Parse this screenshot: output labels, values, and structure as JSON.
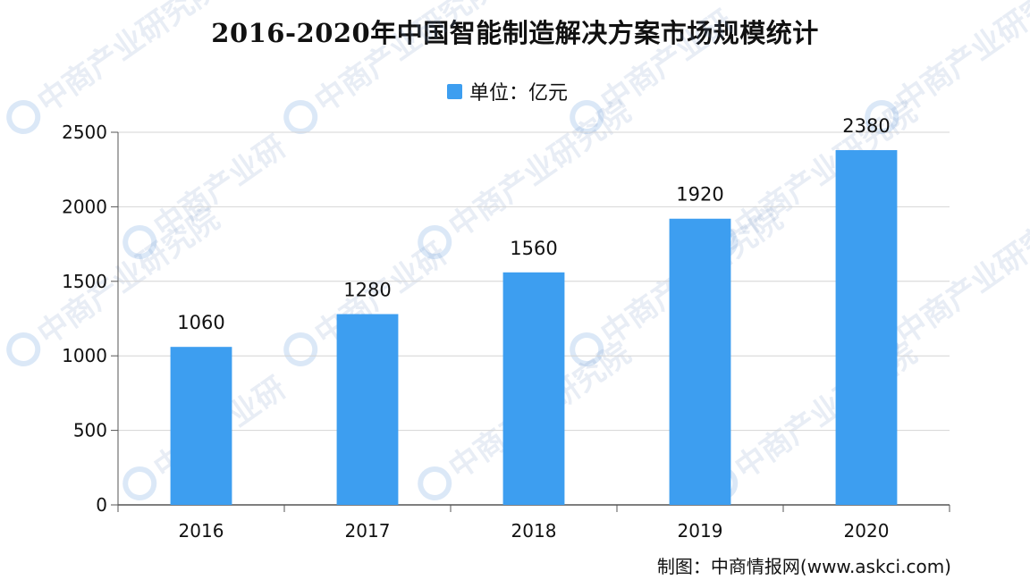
{
  "title": "2016-2020年中国智能制造解决方案市场规模统计",
  "legend": {
    "label": "单位：亿元",
    "color": "#3d9ef0"
  },
  "credit": "制图：中商情报网(www.askci.com)",
  "watermark": {
    "text_main": "中商产业研究院",
    "text_alt": "中商产业研",
    "logo_icon": "askci-logo-icon"
  },
  "chart_data": {
    "type": "bar",
    "title": "2016-2020年中国智能制造解决方案市场规模统计",
    "categories": [
      "2016",
      "2017",
      "2018",
      "2019",
      "2020"
    ],
    "series": [
      {
        "name": "单位：亿元",
        "values": [
          1060,
          1280,
          1560,
          1920,
          2380
        ]
      }
    ],
    "data_labels": [
      "1060",
      "1280",
      "1560",
      "1920",
      "2380"
    ],
    "ylim": [
      0,
      2500
    ],
    "yticks": [
      "0",
      "500",
      "1000",
      "1500",
      "2000",
      "2500"
    ],
    "grid": true,
    "legend_position": "top-center",
    "xlabel": "",
    "ylabel": ""
  }
}
